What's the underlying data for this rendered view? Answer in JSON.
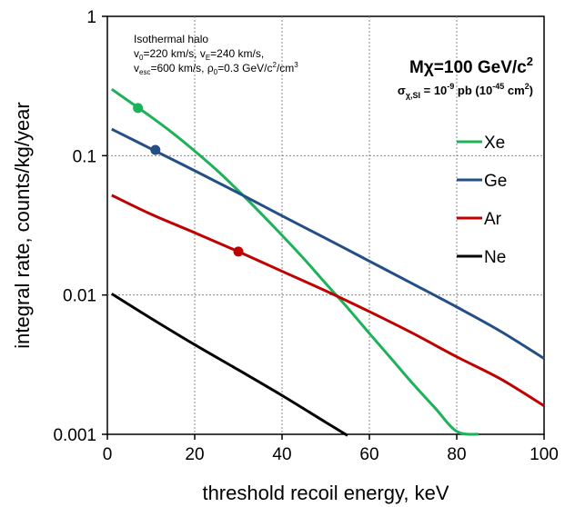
{
  "chart_data": {
    "type": "line",
    "xlabel": "threshold recoil energy, keV",
    "ylabel": "integral rate, counts/kg/year",
    "xlim": [
      0,
      100
    ],
    "ylim": [
      0.001,
      1
    ],
    "yscale": "log",
    "grid": "dotted",
    "x_ticks": [
      "0",
      "20",
      "40",
      "60",
      "80",
      "100"
    ],
    "y_ticks": [
      "0.001",
      "0.01",
      "0.1",
      "1"
    ],
    "legend_position": "right",
    "annotations": {
      "halo_title": "Isothermal halo",
      "halo_line1": {
        "v0_sym": "v",
        "v0_sub": "0",
        "v0_val": "=220 km/s, ",
        "vE_sym": "v",
        "vE_sub": "E",
        "vE_val": "=240 km/s,"
      },
      "halo_line2": {
        "vesc_sym": "v",
        "vesc_sub": "esc",
        "vesc_val": "=600 km/s, ",
        "rho_sym": "ρ",
        "rho_sub": "0",
        "rho_val": "=0.3 GeV/c",
        "rho_sup": "2",
        "rho_tail": "/cm",
        "rho_sup2": "3"
      },
      "mass": {
        "text": "Mχ=100 GeV/c",
        "sup": "2"
      },
      "cross_section": {
        "sym": "σ",
        "sub": "χ,SI",
        "eq": " = 10",
        "exp": "-9",
        "mid": " pb (10",
        "exp2": "-45",
        "tail": " cm",
        "sup": "2",
        "close": ")"
      }
    },
    "series": [
      {
        "name": "Xe",
        "color": "#1db25a",
        "x": [
          1,
          5,
          10,
          15,
          20,
          25,
          30,
          35,
          40,
          45,
          50,
          55,
          60,
          65,
          70,
          75,
          80,
          85
        ],
        "y": [
          0.3,
          0.245,
          0.19,
          0.145,
          0.108,
          0.079,
          0.056,
          0.039,
          0.0268,
          0.0182,
          0.0121,
          0.0081,
          0.0053,
          0.0035,
          0.0023,
          0.00155,
          0.00105,
          0.001
        ],
        "marker": {
          "x": 7,
          "y": 0.22
        }
      },
      {
        "name": "Ge",
        "color": "#234e86",
        "x": [
          1,
          10,
          20,
          30,
          40,
          50,
          60,
          70,
          80,
          90,
          100
        ],
        "y": [
          0.155,
          0.112,
          0.078,
          0.054,
          0.037,
          0.0255,
          0.0175,
          0.012,
          0.0082,
          0.0055,
          0.0035
        ],
        "marker": {
          "x": 11,
          "y": 0.11
        }
      },
      {
        "name": "Ar",
        "color": "#c00000",
        "x": [
          1,
          10,
          20,
          30,
          40,
          50,
          60,
          70,
          80,
          90,
          100
        ],
        "y": [
          0.052,
          0.038,
          0.028,
          0.0205,
          0.0148,
          0.0107,
          0.0076,
          0.0053,
          0.0036,
          0.0025,
          0.0016
        ],
        "marker": {
          "x": 30,
          "y": 0.0205
        }
      },
      {
        "name": "Ne",
        "color": "#000000",
        "x": [
          1,
          10,
          20,
          30,
          40,
          50,
          55
        ],
        "y": [
          0.0102,
          0.0068,
          0.0044,
          0.0029,
          0.0019,
          0.00122,
          0.00098
        ]
      }
    ]
  }
}
